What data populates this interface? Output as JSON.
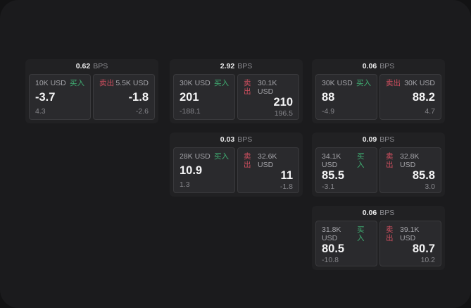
{
  "page": {
    "background": "#131314",
    "window_background": "#1b1b1d"
  },
  "labels": {
    "bps": "BPS",
    "buy": "买入",
    "sell": "卖出"
  },
  "colors": {
    "buy": "#3fae72",
    "sell": "#cf4f5f"
  },
  "cards": [
    {
      "bps": "0.62",
      "buy_amount": "10K USD",
      "buy_value": "-3.7",
      "buy_sub": "4.3",
      "sell_amount": "5.5K USD",
      "sell_value": "-1.8",
      "sell_sub": "-2.6"
    },
    {
      "bps": "2.92",
      "buy_amount": "30K USD",
      "buy_value": "201",
      "buy_sub": "-188.1",
      "sell_amount": "30.1K USD",
      "sell_value": "210",
      "sell_sub": "196.5"
    },
    {
      "bps": "0.06",
      "buy_amount": "30K USD",
      "buy_value": "88",
      "buy_sub": "-4.9",
      "sell_amount": "30K USD",
      "sell_value": "88.2",
      "sell_sub": "4.7"
    },
    {
      "bps": "0.03",
      "buy_amount": "28K USD",
      "buy_value": "10.9",
      "buy_sub": "1.3",
      "sell_amount": "32.6K USD",
      "sell_value": "11",
      "sell_sub": "-1.8"
    },
    {
      "bps": "0.09",
      "buy_amount": "34.1K USD",
      "buy_value": "85.5",
      "buy_sub": "-3.1",
      "sell_amount": "32.8K USD",
      "sell_value": "85.8",
      "sell_sub": "3.0"
    },
    {
      "bps": "0.06",
      "buy_amount": "31.8K USD",
      "buy_value": "80.5",
      "buy_sub": "-10.8",
      "sell_amount": "39.1K USD",
      "sell_value": "80.7",
      "sell_sub": "10.2"
    }
  ]
}
